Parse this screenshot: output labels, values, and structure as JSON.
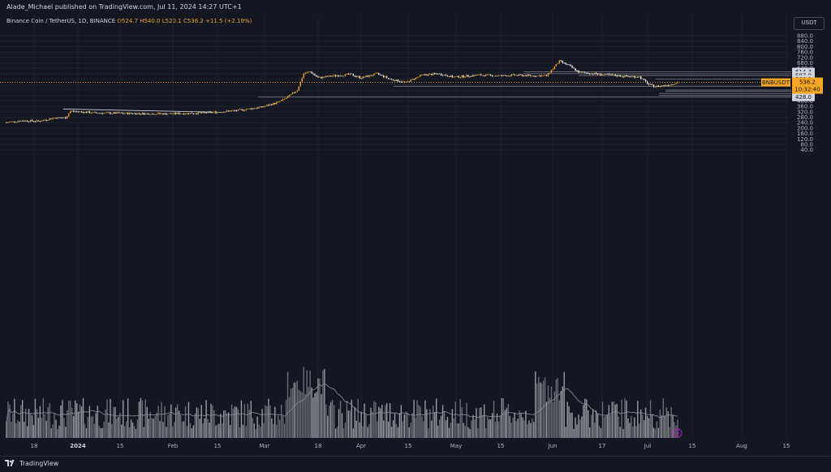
{
  "header": {
    "published": "Alade_Michael published on TradingView.com, Jul 11, 2024 14:27 UTC+1"
  },
  "legend": {
    "symbol": "Binance Coin / TetherUS, 1D, BINANCE",
    "o": "O524.7",
    "h": "H540.0",
    "l": "L520.1",
    "c": "C536.2",
    "chg": "+11.5 (+2.19%)"
  },
  "currency_button": "USDT",
  "price_axis": [
    "880.0",
    "840.0",
    "800.0",
    "760.0",
    "720.0",
    "680.0",
    "640.0",
    "600.0",
    "560.0",
    "520.0",
    "480.0",
    "440.0",
    "400.0",
    "360.0",
    "320.0",
    "280.0",
    "240.0",
    "200.0",
    "160.0",
    "120.0",
    "80.0",
    "40.0"
  ],
  "level_labels": [
    "614.4",
    "600.0",
    "587.0",
    "560.0",
    "508.0",
    "480.0",
    "471.0",
    "455.0",
    "440.0",
    "428.0"
  ],
  "symbol_tag": {
    "name": "BNBUSDT",
    "price": "536.2",
    "timer": "10:32:40"
  },
  "time_axis": [
    "18",
    "2024",
    "15",
    "Feb",
    "15",
    "Mar",
    "18",
    "Apr",
    "15",
    "May",
    "15",
    "Jun",
    "17",
    "Jul",
    "15",
    "Aug",
    "15"
  ],
  "footer": {
    "brand": "TradingView"
  },
  "colors": {
    "up": "#f5a623",
    "down": "#ffffff",
    "background": "#131722",
    "grid": "#1e222d",
    "level_line": "#787b86"
  }
}
